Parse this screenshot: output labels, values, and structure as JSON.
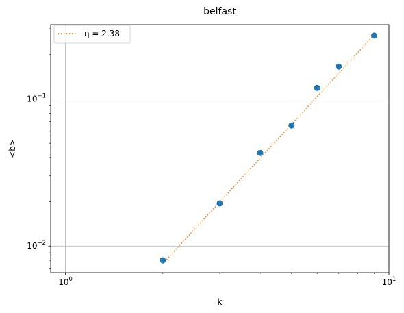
{
  "chart_data": {
    "type": "scatter",
    "title": "belfast",
    "xlabel": "k",
    "ylabel": "<b>",
    "xscale": "log",
    "yscale": "log",
    "xlim": [
      0.9,
      10
    ],
    "ylim": [
      0.0066,
      0.32
    ],
    "grid": true,
    "legend_position": "top-left",
    "x_ticks": [
      {
        "value": 1,
        "base": "10",
        "exp": "0"
      },
      {
        "value": 10,
        "base": "10",
        "exp": "1"
      }
    ],
    "y_ticks": [
      {
        "value": 0.01,
        "base": "10",
        "exp": "−2"
      },
      {
        "value": 0.1,
        "base": "10",
        "exp": "−1"
      }
    ],
    "series": [
      {
        "type": "scatter",
        "color": "#1f77b4",
        "x": [
          2,
          3,
          4,
          5,
          6,
          7,
          9
        ],
        "y": [
          0.008,
          0.0195,
          0.043,
          0.066,
          0.119,
          0.166,
          0.27
        ]
      },
      {
        "type": "line",
        "style": "dotted",
        "name": "η = 2.38",
        "color": "#ff7f0e",
        "x": [
          2,
          9
        ],
        "y": [
          0.0076,
          0.2725
        ]
      }
    ]
  }
}
